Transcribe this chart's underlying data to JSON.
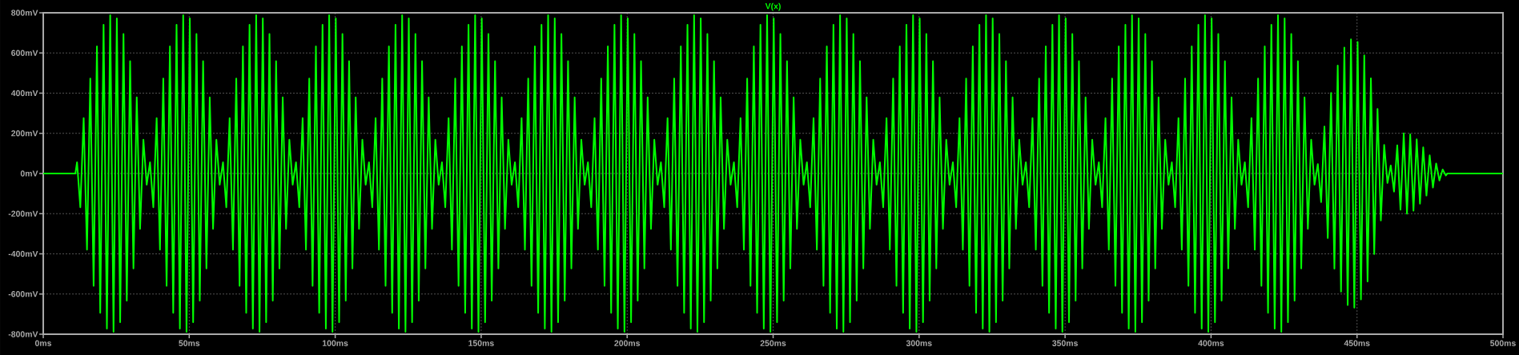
{
  "chart_data": {
    "type": "line",
    "xlim": [
      0,
      500
    ],
    "ylim": [
      -800,
      800
    ],
    "xticks": [
      {
        "value": 0,
        "label": "0ms"
      },
      {
        "value": 50,
        "label": "50ms"
      },
      {
        "value": 100,
        "label": "100ms"
      },
      {
        "value": 150,
        "label": "150ms"
      },
      {
        "value": 200,
        "label": "200ms"
      },
      {
        "value": 250,
        "label": "250ms"
      },
      {
        "value": 300,
        "label": "300ms"
      },
      {
        "value": 350,
        "label": "350ms"
      },
      {
        "value": 400,
        "label": "400ms"
      },
      {
        "value": 450,
        "label": "450ms"
      },
      {
        "value": 500,
        "label": "500ms"
      }
    ],
    "yticks": [
      {
        "value": -800,
        "label": "-800mV"
      },
      {
        "value": -600,
        "label": "-600mV"
      },
      {
        "value": -400,
        "label": "-400mV"
      },
      {
        "value": -200,
        "label": "-200mV"
      },
      {
        "value": 0,
        "label": "0mV"
      },
      {
        "value": 200,
        "label": "200mV"
      },
      {
        "value": 400,
        "label": "400mV"
      },
      {
        "value": 600,
        "label": "600mV"
      },
      {
        "value": 800,
        "label": "800mV"
      }
    ],
    "grid": true,
    "legend": "top",
    "series": [
      {
        "name": "V(x)",
        "color": "#00ff00",
        "x": [
          0,
          11,
          11.57,
          12.7,
          13.84,
          14.98,
          16.11,
          17.25,
          18.39,
          19.52,
          20.66,
          21.8,
          22.93,
          24.07,
          25.2,
          26.34,
          27.48,
          28.61,
          29.75,
          30.89,
          32.02,
          33.16,
          34.3,
          35.43,
          36.57,
          37.7,
          38.84,
          39.98,
          41.11,
          42.25,
          43.39,
          44.52,
          45.66,
          46.8,
          47.93,
          49.07,
          50.2,
          51.34,
          52.48,
          53.61,
          54.75,
          55.89,
          57.02,
          58.16,
          59.3,
          60.43,
          61.57,
          62.7,
          63.84,
          64.98,
          66.11,
          67.25,
          68.39,
          69.52,
          70.66,
          71.8,
          72.93,
          74.07,
          75.2,
          76.34,
          77.48,
          78.61,
          79.75,
          80.89,
          82.02,
          83.16,
          84.3,
          85.43,
          86.57,
          87.7,
          88.84,
          89.98,
          91.11,
          92.25,
          93.39,
          94.52,
          95.66,
          96.8,
          97.93,
          99.07,
          100.2,
          101.34,
          102.48,
          103.61,
          104.75,
          105.89,
          107.02,
          108.16,
          109.3,
          110.43,
          111.57,
          112.7,
          113.84,
          114.98,
          116.11,
          117.25,
          118.39,
          119.52,
          120.66,
          121.8,
          122.93,
          124.07,
          125.2,
          126.34,
          127.48,
          128.61,
          129.75,
          130.89,
          132.02,
          133.16,
          134.3,
          135.43,
          136.57,
          137.7,
          138.84,
          139.98,
          141.11,
          142.25,
          143.39,
          144.52,
          145.66,
          146.8,
          147.93,
          149.07,
          150.2,
          151.34,
          152.48,
          153.61,
          154.75,
          155.89,
          157.02,
          158.16,
          159.3,
          160.43,
          161.57,
          162.7,
          163.84,
          164.98,
          166.11,
          167.25,
          168.39,
          169.52,
          170.66,
          171.8,
          172.93,
          174.07,
          175.2,
          176.34,
          177.48,
          178.61,
          179.75,
          180.89,
          182.02,
          183.16,
          184.3,
          185.43,
          186.57,
          187.7,
          188.84,
          189.98,
          191.11,
          192.25,
          193.39,
          194.52,
          195.66,
          196.8,
          197.93,
          199.07,
          200.2,
          201.34,
          202.48,
          203.61,
          204.75,
          205.89,
          207.02,
          208.16,
          209.3,
          210.43,
          211.57,
          212.7,
          213.84,
          214.98,
          216.11,
          217.25,
          218.39,
          219.52,
          220.66,
          221.8,
          222.93,
          224.07,
          225.2,
          226.34,
          227.48,
          228.61,
          229.75,
          230.89,
          232.02,
          233.16,
          234.3,
          235.43,
          236.57,
          237.7,
          238.84,
          239.98,
          241.11,
          242.25,
          243.39,
          244.52,
          245.66,
          246.8,
          247.93,
          249.07,
          250.2,
          251.34,
          252.48,
          253.61,
          254.75,
          255.89,
          257.02,
          258.16,
          259.3,
          260.43,
          261.57,
          262.7,
          263.84,
          264.98,
          266.11,
          267.25,
          268.39,
          269.52,
          270.66,
          271.8,
          272.93,
          274.07,
          275.2,
          276.34,
          277.48,
          278.61,
          279.75,
          280.89,
          282.02,
          283.16,
          284.3,
          285.43,
          286.57,
          287.7,
          288.84,
          289.98,
          291.11,
          292.25,
          293.39,
          294.52,
          295.66,
          296.8,
          297.93,
          299.07,
          300.2,
          301.34,
          302.48,
          303.61,
          304.75,
          305.89,
          307.02,
          308.16,
          309.3,
          310.43,
          311.57,
          312.7,
          313.84,
          314.98,
          316.11,
          317.25,
          318.39,
          319.52,
          320.66,
          321.8,
          322.93,
          324.07,
          325.2,
          326.34,
          327.48,
          328.61,
          329.75,
          330.89,
          332.02,
          333.16,
          334.3,
          335.43,
          336.57,
          337.7,
          338.84,
          339.98,
          341.11,
          342.25,
          343.39,
          344.52,
          345.66,
          346.8,
          347.93,
          349.07,
          350.2,
          351.34,
          352.48,
          353.61,
          354.75,
          355.89,
          357.02,
          358.16,
          359.3,
          360.43,
          361.57,
          362.7,
          363.84,
          364.98,
          366.11,
          367.25,
          368.39,
          369.52,
          370.66,
          371.8,
          372.93,
          374.07,
          375.2,
          376.34,
          377.48,
          378.61,
          379.75,
          380.89,
          382.02,
          383.16,
          384.3,
          385.43,
          386.57,
          387.7,
          388.84,
          389.98,
          391.11,
          392.25,
          393.39,
          394.52,
          395.66,
          396.8,
          397.93,
          399.07,
          400.2,
          401.34,
          402.48,
          403.61,
          404.75,
          405.89,
          407.02,
          408.16,
          409.3,
          410.43,
          411.57,
          412.7,
          413.84,
          414.98,
          416.11,
          417.25,
          418.39,
          419.52,
          420.66,
          421.8,
          422.93,
          424.07,
          425.2,
          426.34,
          427.48,
          428.61,
          429.75,
          430.89,
          432.02,
          433.16,
          434.3,
          435.43,
          436.57,
          437.7,
          438.84,
          439.98,
          441.11,
          442.25,
          443.39,
          444.52,
          445.66,
          446.8,
          447.93,
          449.07,
          450.2,
          451.34,
          452.48,
          453.61,
          454.75,
          455.89,
          457.02,
          458.16,
          459.3,
          460.43,
          461.56,
          462.67,
          463.78,
          464.89,
          466,
          467.11,
          468.22,
          469.33,
          470.44,
          471.56,
          472.67,
          473.78,
          474.89,
          476,
          477.11,
          478.22,
          479.33,
          480.44,
          481,
          500
        ],
        "values": [
          0,
          0,
          56,
          -168,
          276,
          -379,
          473,
          -559,
          633,
          -694,
          740,
          -772,
          788,
          -788,
          772,
          -740,
          694,
          -633,
          559,
          -473,
          379,
          -276,
          168,
          -56,
          56,
          -168,
          276,
          -379,
          473,
          -559,
          633,
          -694,
          740,
          -772,
          788,
          -788,
          772,
          -740,
          694,
          -633,
          559,
          -473,
          379,
          -276,
          168,
          -56,
          56,
          -168,
          276,
          -379,
          473,
          -559,
          633,
          -694,
          740,
          -772,
          788,
          -788,
          772,
          -740,
          694,
          -633,
          559,
          -473,
          379,
          -276,
          168,
          -56,
          56,
          -168,
          276,
          -379,
          473,
          -559,
          633,
          -694,
          740,
          -772,
          788,
          -788,
          772,
          -740,
          694,
          -633,
          559,
          -473,
          379,
          -276,
          168,
          -56,
          56,
          -168,
          276,
          -379,
          473,
          -559,
          633,
          -694,
          740,
          -772,
          788,
          -788,
          772,
          -740,
          694,
          -633,
          559,
          -473,
          379,
          -276,
          168,
          -56,
          56,
          -168,
          276,
          -379,
          473,
          -559,
          633,
          -694,
          740,
          -772,
          788,
          -788,
          772,
          -740,
          694,
          -633,
          559,
          -473,
          379,
          -276,
          168,
          -56,
          56,
          -168,
          276,
          -379,
          473,
          -559,
          633,
          -694,
          740,
          -772,
          788,
          -788,
          772,
          -740,
          694,
          -633,
          559,
          -473,
          379,
          -276,
          168,
          -56,
          56,
          -168,
          276,
          -379,
          473,
          -559,
          633,
          -694,
          740,
          -772,
          788,
          -788,
          772,
          -740,
          694,
          -633,
          559,
          -473,
          379,
          -276,
          168,
          -56,
          56,
          -168,
          276,
          -379,
          473,
          -559,
          633,
          -694,
          740,
          -772,
          788,
          -788,
          772,
          -740,
          694,
          -633,
          559,
          -473,
          379,
          -276,
          168,
          -56,
          56,
          -168,
          276,
          -379,
          473,
          -559,
          633,
          -694,
          740,
          -772,
          788,
          -788,
          772,
          -740,
          694,
          -633,
          559,
          -473,
          379,
          -276,
          168,
          -56,
          56,
          -168,
          276,
          -379,
          473,
          -559,
          633,
          -694,
          740,
          -772,
          788,
          -788,
          772,
          -740,
          694,
          -633,
          559,
          -473,
          379,
          -276,
          168,
          -56,
          56,
          -168,
          276,
          -379,
          473,
          -559,
          633,
          -694,
          740,
          -772,
          788,
          -788,
          772,
          -740,
          694,
          -633,
          559,
          -473,
          379,
          -276,
          168,
          -56,
          56,
          -168,
          276,
          -379,
          473,
          -559,
          633,
          -694,
          740,
          -772,
          788,
          -788,
          772,
          -740,
          694,
          -633,
          559,
          -473,
          379,
          -276,
          168,
          -56,
          56,
          -168,
          276,
          -379,
          473,
          -559,
          633,
          -694,
          740,
          -772,
          788,
          -788,
          772,
          -740,
          694,
          -633,
          559,
          -473,
          379,
          -276,
          168,
          -56,
          56,
          -168,
          276,
          -379,
          473,
          -559,
          633,
          -694,
          740,
          -772,
          788,
          -788,
          772,
          -740,
          694,
          -633,
          559,
          -473,
          379,
          -276,
          168,
          -56,
          56,
          -168,
          276,
          -379,
          473,
          -559,
          633,
          -694,
          740,
          -772,
          788,
          -788,
          772,
          -740,
          694,
          -633,
          559,
          -473,
          379,
          -276,
          168,
          -56,
          56,
          -168,
          276,
          -379,
          473,
          -559,
          633,
          -694,
          740,
          -772,
          788,
          -788,
          772,
          -740,
          694,
          -633,
          559,
          -473,
          379,
          -276,
          168,
          -56,
          47,
          -142,
          234,
          -321,
          401,
          -474,
          537,
          -588,
          627,
          -655,
          668,
          -668,
          655,
          -627,
          588,
          -537,
          474,
          -401,
          321,
          -234,
          142,
          -47,
          40,
          -90,
          140,
          -180,
          200,
          -200,
          195,
          -185,
          170,
          -150,
          130,
          -110,
          90,
          -70,
          50,
          -35,
          20,
          -10,
          0,
          0
        ]
      }
    ]
  }
}
